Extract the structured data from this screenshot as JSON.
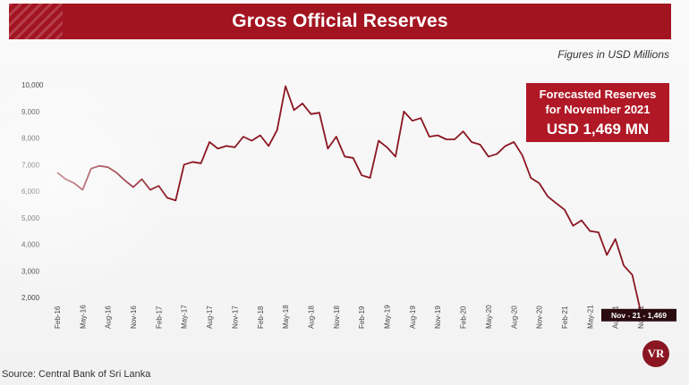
{
  "chart_data": {
    "type": "line",
    "title": "Gross Official Reserves",
    "subtitle": "Figures in USD Millions",
    "source": "Source: Central Bank of Sri Lanka",
    "y_ticks": [
      "10,000",
      "9,000",
      "8,000",
      "7,000",
      "6,000",
      "5,000",
      "4,000",
      "3,000",
      "2,000"
    ],
    "ylim": [
      2000,
      10000
    ],
    "x_tick_labels": [
      "Feb-16",
      "May-16",
      "Aug-16",
      "Nov-16",
      "Feb-17",
      "May-17",
      "Aug-17",
      "Nov-17",
      "Feb-18",
      "May-18",
      "Aug-18",
      "Nov-18",
      "Feb-19",
      "May-19",
      "Aug-19",
      "Nov-19",
      "Feb-20",
      "May-20",
      "Aug-20",
      "Nov-20",
      "Feb-21",
      "May-21",
      "Aug-21",
      "Nov-21"
    ],
    "series": [
      {
        "name": "",
        "color": "#8a1622",
        "x": [
          "Feb-16",
          "Mar-16",
          "Apr-16",
          "May-16",
          "Jun-16",
          "Jul-16",
          "Aug-16",
          "Sep-16",
          "Oct-16",
          "Nov-16",
          "Dec-16",
          "Jan-17",
          "Feb-17",
          "Mar-17",
          "Apr-17",
          "May-17",
          "Jun-17",
          "Jul-17",
          "Aug-17",
          "Sep-17",
          "Oct-17",
          "Nov-17",
          "Dec-17",
          "Jan-18",
          "Feb-18",
          "Mar-18",
          "Apr-18",
          "May-18",
          "Jun-18",
          "Jul-18",
          "Aug-18",
          "Sep-18",
          "Oct-18",
          "Nov-18",
          "Dec-18",
          "Jan-19",
          "Feb-19",
          "Mar-19",
          "Apr-19",
          "May-19",
          "Jun-19",
          "Jul-19",
          "Aug-19",
          "Sep-19",
          "Oct-19",
          "Nov-19",
          "Dec-19",
          "Jan-20",
          "Feb-20",
          "Mar-20",
          "Apr-20",
          "May-20",
          "Jun-20",
          "Jul-20",
          "Aug-20",
          "Sep-20",
          "Oct-20",
          "Nov-20",
          "Dec-20",
          "Jan-21",
          "Feb-21",
          "Mar-21",
          "Apr-21",
          "May-21",
          "Jun-21",
          "Jul-21",
          "Aug-21",
          "Sep-21",
          "Oct-21",
          "Nov-21"
        ],
        "values": [
          6700,
          6450,
          6300,
          6050,
          6850,
          6950,
          6900,
          6700,
          6400,
          6150,
          6450,
          6050,
          6200,
          5750,
          5650,
          7000,
          7100,
          7050,
          7850,
          7600,
          7700,
          7650,
          8050,
          7900,
          8100,
          7700,
          8300,
          9950,
          9050,
          9300,
          8900,
          8950,
          7600,
          8050,
          7300,
          7250,
          6600,
          6500,
          7900,
          7650,
          7300,
          9000,
          8650,
          8750,
          8050,
          8100,
          7950,
          7950,
          8250,
          7850,
          7750,
          7300,
          7400,
          7700,
          7850,
          7350,
          6500,
          6300,
          5800,
          5550,
          5300,
          4700,
          4900,
          4500,
          4450,
          3600,
          4200,
          3200,
          2850,
          1469
        ]
      }
    ],
    "annotations": {
      "forecast_line1": "Forecasted Reserves",
      "forecast_line2": "for November 2021",
      "forecast_value": "USD 1,469 MN",
      "last_point_label": "Nov - 21 - 1,469"
    },
    "logo_text": "VR"
  }
}
